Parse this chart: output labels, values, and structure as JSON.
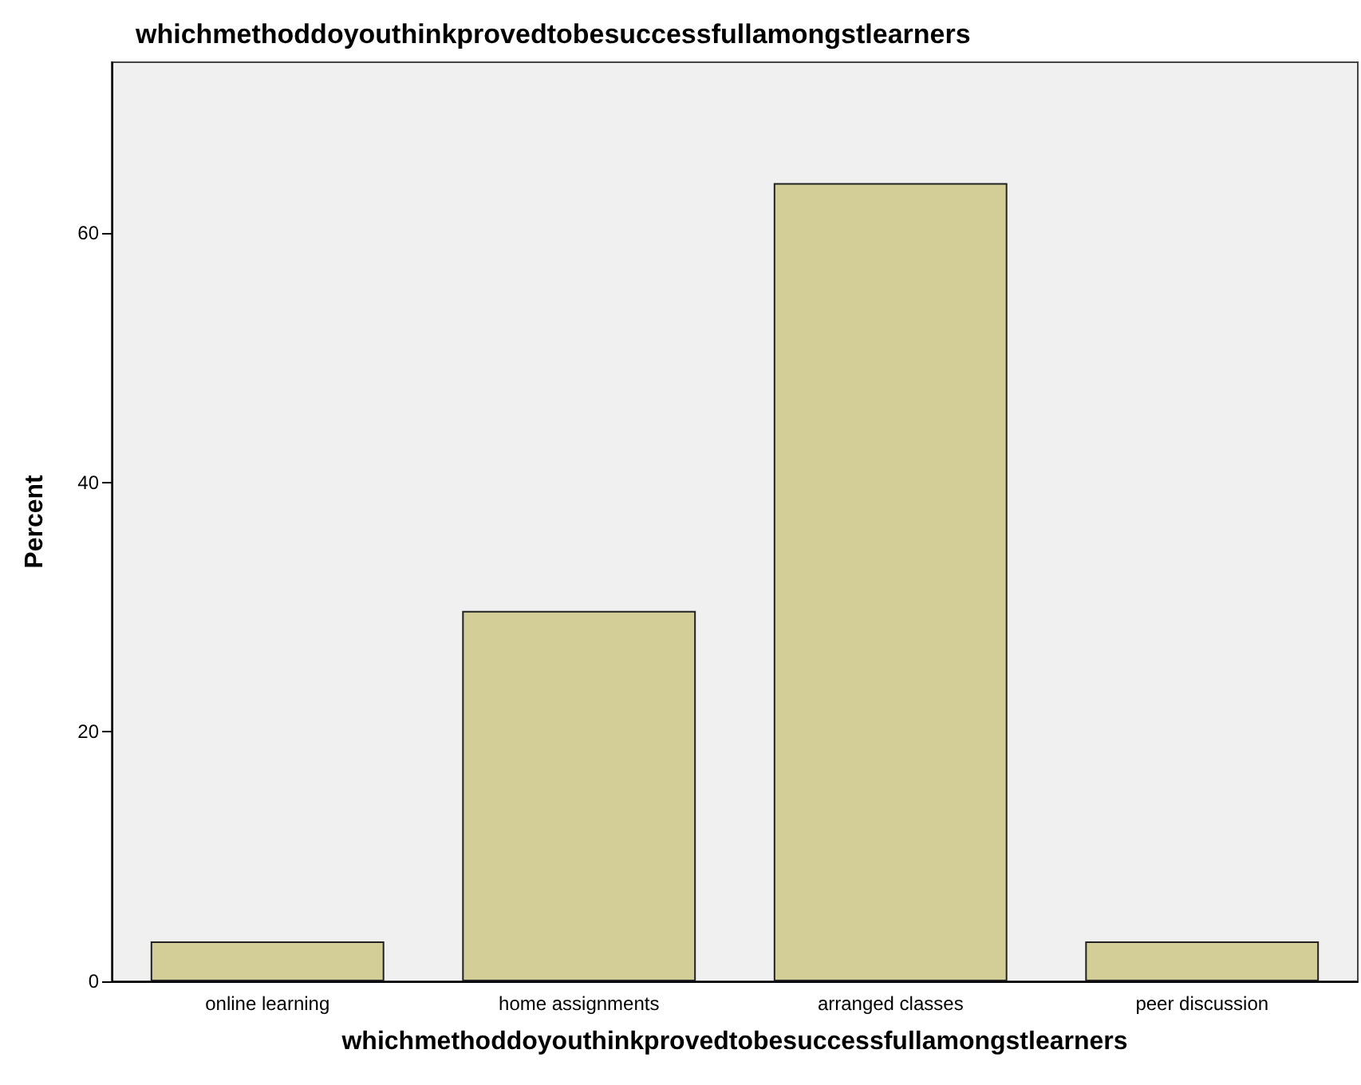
{
  "chart_data": {
    "type": "bar",
    "title": "whichmethoddoyouthinkprovedtobesuccessfullamongstlearners",
    "xlabel": "whichmethoddoyouthinkprovedtobesuccessfullamongstlearners",
    "ylabel": "Percent",
    "categories": [
      "online learning",
      "home assignments",
      "arranged classes",
      "peer discussion"
    ],
    "values": [
      3.2,
      29.7,
      64.0,
      3.2
    ],
    "color": "#d3ce97",
    "ylim": [
      0,
      73.7
    ],
    "yticks": [
      0,
      20,
      40,
      60
    ],
    "grid": false
  }
}
